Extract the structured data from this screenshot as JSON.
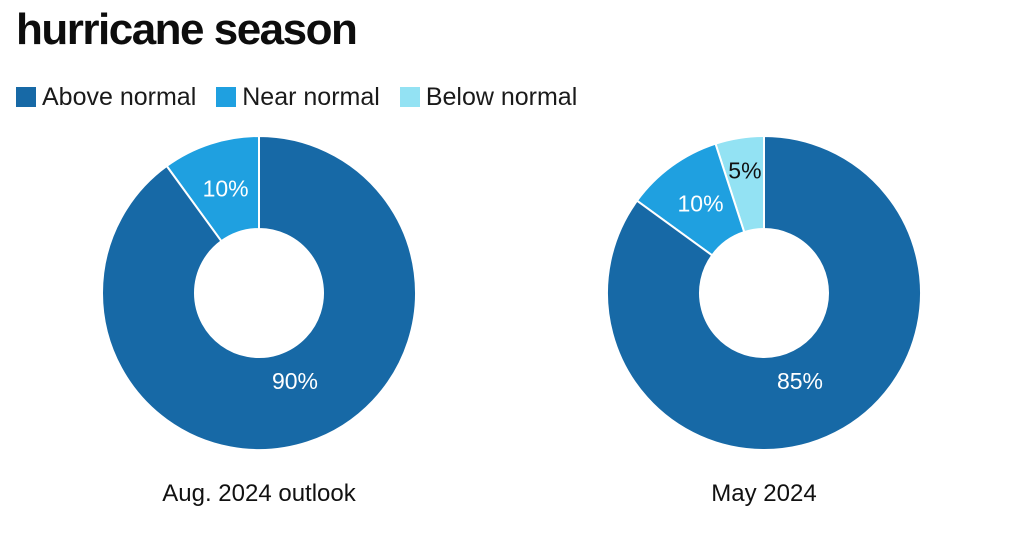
{
  "title": "hurricane season",
  "legend": {
    "items": [
      {
        "label": "Above normal",
        "color": "#1769a6"
      },
      {
        "label": "Near normal",
        "color": "#1fa0e0"
      },
      {
        "label": "Below normal",
        "color": "#93e2f3"
      }
    ],
    "placement": "top-left"
  },
  "chart_data": [
    {
      "type": "pie",
      "subtype": "donut",
      "caption": "Aug. 2024 outlook",
      "slices": [
        {
          "label": "Above normal",
          "value": 90,
          "display": "90%",
          "color": "#1769a6",
          "text_color": "#ffffff"
        },
        {
          "label": "Near normal",
          "value": 10,
          "display": "10%",
          "color": "#1fa0e0",
          "text_color": "#ffffff"
        },
        {
          "label": "Below normal",
          "value": 0,
          "display": "",
          "color": "#93e2f3",
          "text_color": "#111111"
        }
      ]
    },
    {
      "type": "pie",
      "subtype": "donut",
      "caption": "May 2024",
      "slices": [
        {
          "label": "Above normal",
          "value": 85,
          "display": "85%",
          "color": "#1769a6",
          "text_color": "#ffffff"
        },
        {
          "label": "Near normal",
          "value": 10,
          "display": "10%",
          "color": "#1fa0e0",
          "text_color": "#ffffff"
        },
        {
          "label": "Below normal",
          "value": 5,
          "display": "5%",
          "color": "#93e2f3",
          "text_color": "#111111"
        }
      ]
    }
  ]
}
